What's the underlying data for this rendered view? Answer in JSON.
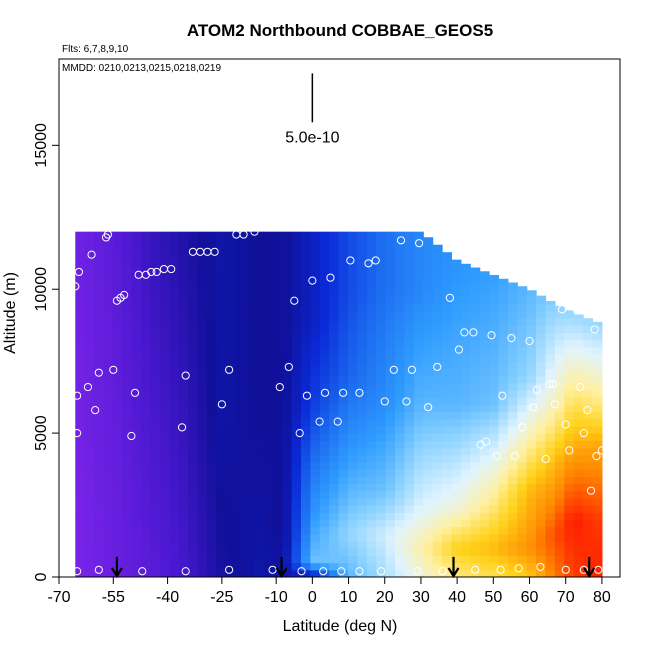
{
  "chart_data": {
    "type": "heatmap",
    "title": "ATOM2 Northbound COBBAE_GEOS5",
    "subtitle_flights": "Flts: 6,7,8,9,10",
    "subtitle_dates": "MMDD: 0210,0213,0215,0218,0219",
    "xlabel": "Latitude (deg N)",
    "ylabel": "Altitude (m)",
    "xlim": [
      -70,
      85
    ],
    "ylim": [
      0,
      18000
    ],
    "x_ticks": [
      -70,
      -55,
      -40,
      -25,
      -10,
      0,
      10,
      20,
      30,
      40,
      50,
      60,
      70,
      80
    ],
    "x_tick_labels": [
      "-70",
      "-55",
      "-40",
      "-25",
      "-10",
      "0",
      "10",
      "20",
      "30",
      "40",
      "50",
      "60",
      "70",
      "80"
    ],
    "y_ticks": [
      0,
      5000,
      10000,
      15000
    ],
    "y_tick_labels": [
      "0",
      "5000",
      "10000",
      "15000"
    ],
    "scale_bar": {
      "label": "5.0e-10",
      "x": 0,
      "y_bottom": 15800,
      "y_top": 17500
    },
    "colormap": [
      "#7a24e8",
      "#4a18d0",
      "#10109a",
      "#0a2ad8",
      "#1a66ee",
      "#2f9cff",
      "#86d0ff",
      "#e0f4ff",
      "#fff0a0",
      "#ffd21a",
      "#ff8a00",
      "#ff1a00"
    ],
    "field_columns": [
      {
        "lat": -65.5,
        "top": 12000,
        "profile": [
          [
            0,
            0.0
          ],
          [
            12000,
            0.02
          ]
        ]
      },
      {
        "lat": -55,
        "top": 12000,
        "profile": [
          [
            0,
            0.03
          ],
          [
            12000,
            0.06
          ]
        ]
      },
      {
        "lat": -45,
        "top": 12000,
        "profile": [
          [
            0,
            0.06
          ],
          [
            12000,
            0.12
          ]
        ]
      },
      {
        "lat": -35,
        "top": 12000,
        "profile": [
          [
            0,
            0.1
          ],
          [
            12000,
            0.16
          ]
        ]
      },
      {
        "lat": -25,
        "top": 12000,
        "profile": [
          [
            0,
            0.17
          ],
          [
            6000,
            0.2
          ],
          [
            12000,
            0.2
          ]
        ]
      },
      {
        "lat": -15,
        "top": 12000,
        "profile": [
          [
            0,
            0.2
          ],
          [
            6000,
            0.18
          ],
          [
            12000,
            0.18
          ]
        ]
      },
      {
        "lat": -8,
        "top": 12000,
        "profile": [
          [
            0,
            0.2
          ],
          [
            1500,
            0.18
          ],
          [
            5000,
            0.18
          ],
          [
            12000,
            0.18
          ]
        ]
      },
      {
        "lat": 0,
        "top": 12000,
        "profile": [
          [
            0,
            0.2
          ],
          [
            500,
            0.52
          ],
          [
            2000,
            0.45
          ],
          [
            4000,
            0.38
          ],
          [
            6000,
            0.3
          ],
          [
            9000,
            0.24
          ],
          [
            12000,
            0.24
          ]
        ]
      },
      {
        "lat": 10,
        "top": 12000,
        "profile": [
          [
            0,
            0.5
          ],
          [
            1500,
            0.56
          ],
          [
            4000,
            0.46
          ],
          [
            7000,
            0.36
          ],
          [
            10000,
            0.32
          ],
          [
            12000,
            0.32
          ]
        ]
      },
      {
        "lat": 20,
        "top": 12000,
        "profile": [
          [
            0,
            0.58
          ],
          [
            1500,
            0.62
          ],
          [
            3000,
            0.52
          ],
          [
            6000,
            0.43
          ],
          [
            10000,
            0.38
          ],
          [
            12000,
            0.38
          ]
        ]
      },
      {
        "lat": 30,
        "top": 12000,
        "profile": [
          [
            0,
            0.67
          ],
          [
            1000,
            0.72
          ],
          [
            2500,
            0.63
          ],
          [
            6000,
            0.5
          ],
          [
            10000,
            0.42
          ],
          [
            12000,
            0.42
          ]
        ]
      },
      {
        "lat": 40,
        "top": 11000,
        "profile": [
          [
            0,
            0.75
          ],
          [
            1000,
            0.82
          ],
          [
            2500,
            0.67
          ],
          [
            6000,
            0.5
          ],
          [
            11000,
            0.44
          ]
        ]
      },
      {
        "lat": 50,
        "top": 10500,
        "profile": [
          [
            0,
            0.78
          ],
          [
            1000,
            0.85
          ],
          [
            3000,
            0.72
          ],
          [
            6000,
            0.52
          ],
          [
            10500,
            0.46
          ]
        ]
      },
      {
        "lat": 60,
        "top": 10000,
        "profile": [
          [
            0,
            0.83
          ],
          [
            1000,
            0.9
          ],
          [
            3000,
            0.85
          ],
          [
            5000,
            0.7
          ],
          [
            7000,
            0.56
          ],
          [
            10000,
            0.5
          ]
        ]
      },
      {
        "lat": 67,
        "top": 9500,
        "profile": [
          [
            0,
            0.92
          ],
          [
            1500,
            0.96
          ],
          [
            4000,
            0.85
          ],
          [
            6000,
            0.7
          ],
          [
            9500,
            0.55
          ]
        ]
      },
      {
        "lat": 72,
        "top": 9200,
        "profile": [
          [
            0,
            0.97
          ],
          [
            2000,
            1.0
          ],
          [
            4000,
            0.9
          ],
          [
            6000,
            0.78
          ],
          [
            9200,
            0.56
          ]
        ]
      },
      {
        "lat": 80,
        "top": 8800,
        "profile": [
          [
            0,
            1.0
          ],
          [
            2000,
            0.97
          ],
          [
            4500,
            0.88
          ],
          [
            6000,
            0.75
          ],
          [
            8800,
            0.56
          ]
        ]
      }
    ],
    "sample_points": [
      [
        -65.5,
        10100
      ],
      [
        -65,
        6300
      ],
      [
        -65,
        5000
      ],
      [
        -64.5,
        10600
      ],
      [
        -62,
        6600
      ],
      [
        -61,
        11200
      ],
      [
        -60,
        5800
      ],
      [
        -59,
        7100
      ],
      [
        -57,
        11800
      ],
      [
        -56.5,
        11900
      ],
      [
        -55,
        7200
      ],
      [
        -54,
        9600
      ],
      [
        -53,
        9700
      ],
      [
        -52,
        9800
      ],
      [
        -50,
        4900
      ],
      [
        -49,
        6400
      ],
      [
        -48,
        10500
      ],
      [
        -46,
        10500
      ],
      [
        -44.5,
        10600
      ],
      [
        -43,
        10600
      ],
      [
        -41,
        10700
      ],
      [
        -39,
        10700
      ],
      [
        -36,
        5200
      ],
      [
        -35,
        7000
      ],
      [
        -33,
        11300
      ],
      [
        -31,
        11300
      ],
      [
        -29,
        11300
      ],
      [
        -27,
        11300
      ],
      [
        -25,
        6000
      ],
      [
        -23,
        7200
      ],
      [
        -21,
        11900
      ],
      [
        -19,
        11900
      ],
      [
        -16,
        12000
      ],
      [
        -9,
        6600
      ],
      [
        -6.5,
        7300
      ],
      [
        -5,
        9600
      ],
      [
        -3.5,
        5000
      ],
      [
        -1.5,
        6300
      ],
      [
        0,
        10300
      ],
      [
        2,
        5400
      ],
      [
        3.5,
        6400
      ],
      [
        5,
        10400
      ],
      [
        7,
        5400
      ],
      [
        8.5,
        6400
      ],
      [
        10.5,
        11000
      ],
      [
        13,
        6400
      ],
      [
        15.5,
        10900
      ],
      [
        17.5,
        11000
      ],
      [
        20,
        6100
      ],
      [
        22.5,
        7200
      ],
      [
        24.5,
        11700
      ],
      [
        26,
        6100
      ],
      [
        27.5,
        7200
      ],
      [
        29.5,
        11600
      ],
      [
        32,
        5900
      ],
      [
        34.5,
        7300
      ],
      [
        36,
        11800
      ],
      [
        38,
        9700
      ],
      [
        40.5,
        7900
      ],
      [
        42,
        8500
      ],
      [
        44.5,
        8500
      ],
      [
        46.5,
        4600
      ],
      [
        48,
        4700
      ],
      [
        49.5,
        8400
      ],
      [
        51,
        4200
      ],
      [
        52.5,
        6300
      ],
      [
        55,
        8300
      ],
      [
        56,
        4200
      ],
      [
        58,
        5200
      ],
      [
        60,
        8200
      ],
      [
        61,
        5900
      ],
      [
        62,
        6500
      ],
      [
        64.5,
        4100
      ],
      [
        65.5,
        6700
      ],
      [
        66.5,
        6700
      ],
      [
        67,
        6000
      ],
      [
        69,
        9300
      ],
      [
        70,
        5300
      ],
      [
        71,
        4400
      ],
      [
        73,
        9300
      ],
      [
        74,
        6600
      ],
      [
        75,
        5000
      ],
      [
        76,
        5800
      ],
      [
        77,
        3000
      ],
      [
        78,
        8600
      ],
      [
        78.5,
        4200
      ],
      [
        80,
        4400
      ],
      [
        -65,
        200
      ],
      [
        -59,
        250
      ],
      [
        -47,
        200
      ],
      [
        -35,
        200
      ],
      [
        -23,
        250
      ],
      [
        -11,
        250
      ],
      [
        -3,
        200
      ],
      [
        3,
        200
      ],
      [
        8,
        200
      ],
      [
        13,
        200
      ],
      [
        19,
        200
      ],
      [
        29,
        200
      ],
      [
        36,
        200
      ],
      [
        45,
        250
      ],
      [
        52,
        250
      ],
      [
        57,
        300
      ],
      [
        63,
        350
      ],
      [
        70,
        250
      ],
      [
        75,
        250
      ],
      [
        79,
        250
      ]
    ],
    "arrows_lat": [
      -54,
      -8.5,
      39,
      76.5
    ]
  }
}
